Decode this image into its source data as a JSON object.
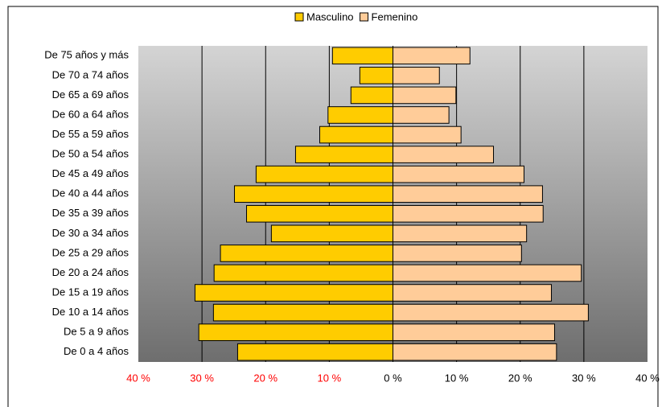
{
  "chart_data": {
    "type": "pyramid",
    "categories": [
      "De 75 años y más",
      "De 70 a 74 años",
      "De 65 a 69 años",
      "De 60 a 64 años",
      "De 55 a 59 años",
      "De 50 a 54 años",
      "De 45 a 49 años",
      "De 40 a 44 años",
      "De 35 a 39 años",
      "De 30 a 34 años",
      "De 25 a 29 años",
      "De 20 a 24 años",
      "De 15 a 19 años",
      "De 10 a 14 años",
      "De 5 a 9 años",
      "De 0 a 4 años"
    ],
    "series": [
      {
        "name": "Masculino",
        "color": "#ffcc00",
        "values": [
          -9.5,
          -5.2,
          -6.6,
          -10.2,
          -11.5,
          -15.3,
          -21.5,
          -24.9,
          -23.0,
          -19.1,
          -27.1,
          -28.1,
          -31.1,
          -28.2,
          -30.5,
          -24.4
        ]
      },
      {
        "name": "Femenino",
        "color": "#ffcc99",
        "values": [
          12.1,
          7.3,
          9.9,
          8.8,
          10.7,
          15.8,
          20.6,
          23.5,
          23.6,
          21.0,
          20.2,
          29.6,
          24.9,
          30.7,
          25.4,
          25.7
        ]
      }
    ],
    "xlim": [
      -40,
      40
    ],
    "xticks": [
      {
        "value": -40,
        "label": "40 %"
      },
      {
        "value": -30,
        "label": "30 %"
      },
      {
        "value": -20,
        "label": "20 %"
      },
      {
        "value": -10,
        "label": "10 %"
      },
      {
        "value": 0,
        "label": "0 %"
      },
      {
        "value": 10,
        "label": "10 %"
      },
      {
        "value": 20,
        "label": "20 %"
      },
      {
        "value": 30,
        "label": "30 %"
      },
      {
        "value": 40,
        "label": "40 %"
      }
    ],
    "grid": true,
    "legend": "top",
    "negative_tick_color": "#ff0000"
  }
}
